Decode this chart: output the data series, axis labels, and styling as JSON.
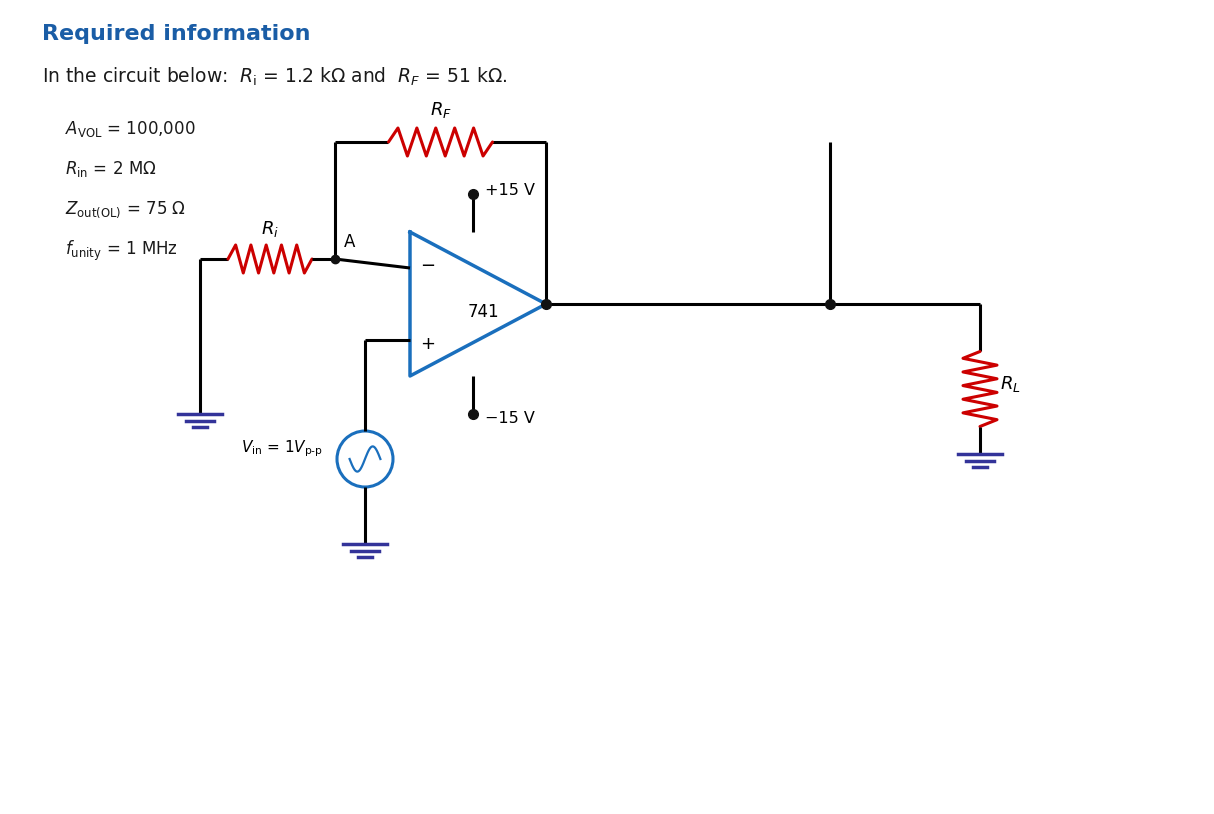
{
  "title_text": "Required information",
  "title_color": "#1a5da6",
  "subtitle_text": "In the circuit below:  $R_\\mathrm{i}$ = 1.2 kΩ and  $R_F$ = 51 kΩ.",
  "params": [
    "$A_\\mathrm{VOL}$ = 100,000",
    "$R_\\mathrm{in}$ = 2 MΩ",
    "$Z_\\mathrm{out(OL)}$ = 75 Ω",
    "$f_\\mathrm{unity}$ = 1 MHz"
  ],
  "bg_color": "#ffffff",
  "wire_color": "#000000",
  "resistor_red": "#cc0000",
  "opamp_color": "#1a6fbd",
  "ground_color": "#333399",
  "source_color": "#1a6fbd",
  "label_color": "#1a1a1a",
  "dot_color": "#111111",
  "node_A_label": "A",
  "opamp_label": "741",
  "plus15_label": "+15 V",
  "minus15_label": "−15 V",
  "rf_label": "$R_F$",
  "ri_label": "$R_i$",
  "rl_label": "$R_L$",
  "vin_label": "$V_{\\mathrm{in}}$ = 1$V_{\\mathrm{p\\text{-}p}}$"
}
